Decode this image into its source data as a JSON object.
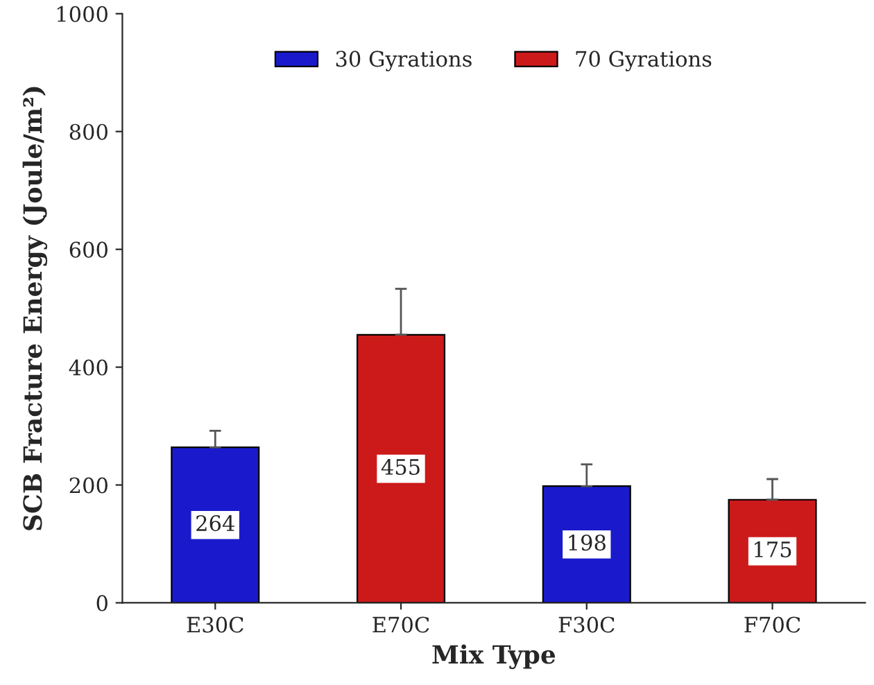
{
  "chart_data": {
    "type": "bar",
    "xlabel": "Mix Type",
    "ylabel": "SCB Fracture Energy (Joule/m²)",
    "categories": [
      "E30C",
      "E70C",
      "F30C",
      "F70C"
    ],
    "series": [
      {
        "name": "30 Gyrations",
        "color": "#1a1acc",
        "values": [
          264,
          null,
          198,
          null
        ],
        "errors": [
          28,
          null,
          37,
          null
        ]
      },
      {
        "name": "70 Gyrations",
        "color": "#cc1a1a",
        "values": [
          null,
          455,
          null,
          175
        ],
        "errors": [
          null,
          78,
          null,
          35
        ]
      }
    ],
    "ylim": [
      0,
      1000
    ],
    "yticks": [
      0,
      200,
      400,
      600,
      800,
      1000
    ],
    "data_labels": true,
    "legend": "top",
    "grid": false
  }
}
